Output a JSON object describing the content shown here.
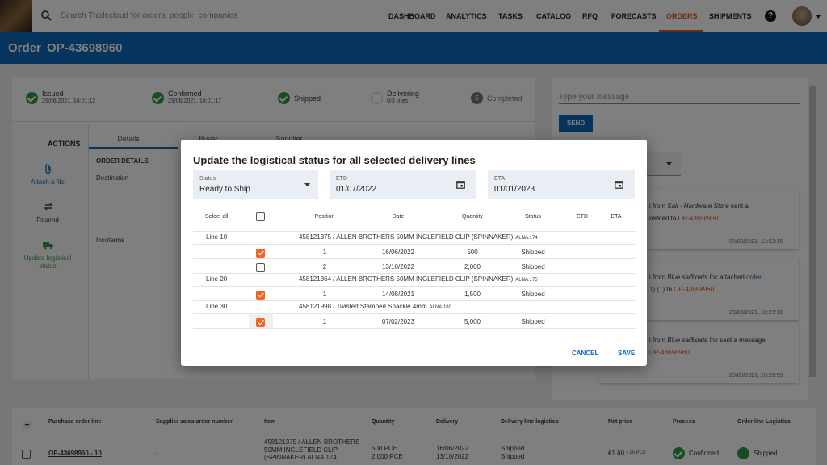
{
  "nav": {
    "search_placeholder": "Search Tradecloud for orders, people, companies",
    "items": [
      "DASHBOARD",
      "ANALYTICS",
      "TASKS",
      "CATALOG",
      "RFQ",
      "FORECASTS",
      "ORDERS",
      "SHIPMENTS"
    ],
    "active_index": 6,
    "help": "?"
  },
  "header": {
    "label": "Order",
    "order_number": "OP-43698960"
  },
  "stepper": [
    {
      "label": "Issued",
      "detail": "29/06/2021, 16:01:12"
    },
    {
      "label": "Confirmed",
      "detail": "29/06/2021, 16:01:17"
    },
    {
      "label": "Shipped"
    },
    {
      "label": "Delivering",
      "detail": "0/3 lines"
    },
    {
      "label": "Completed",
      "number": "5"
    }
  ],
  "tabs": [
    "Details",
    "Buyer",
    "Supplier"
  ],
  "actions": {
    "title": "ACTIONS",
    "items": [
      "Attach a file",
      "Resend",
      "Update logistical status"
    ]
  },
  "order_details": {
    "title": "ORDER DETAILS",
    "fields": [
      "Destination",
      "Incoterms"
    ]
  },
  "chat": {
    "placeholder": "Type your message",
    "send": "SEND",
    "messages": [
      {
        "lines": [
          [
            "i from ",
            "Sail - Hardware Store",
            " sent a"
          ],
          [
            "related to ",
            "OP-43698960"
          ]
        ],
        "time": "08/09/2021, 13:53:16"
      },
      {
        "lines": [
          [
            "i from ",
            "Blue sailboats Inc",
            " attached ",
            "order"
          ],
          [
            "1) (1)",
            " to ",
            "OP-43698960"
          ]
        ],
        "time": "23/08/2021, 10:27:10"
      },
      {
        "lines": [
          [
            "i from ",
            "Blue sailboats Inc",
            " sent a message"
          ],
          [
            "OP-43698960"
          ]
        ],
        "time": "23/08/2021, 10:26:58"
      }
    ]
  },
  "lines_table": {
    "headers": [
      "Purchase order line",
      "Supplier sales order number",
      "Item",
      "Quantity",
      "Delivery",
      "Delivery line logistics",
      "Net price",
      "Process",
      "Order line Logistics"
    ],
    "row": {
      "line": "OP-43698960 - 10",
      "supplier_so": "-",
      "item": "458121375 / ALLEN BROTHERS 50MM INGLEFIELD CLIP (SPINNAKER) ALNA.174",
      "quantity": [
        "500 PCE",
        "2,000 PCE"
      ],
      "delivery": [
        "16/06/2022",
        "13/10/2022"
      ],
      "logistics": [
        "Shipped",
        "Shipped"
      ],
      "price": "€1.60",
      "price_unit": "/ 25 PCE",
      "process": "Confirmed",
      "order_logistics": "Shipped"
    }
  },
  "modal": {
    "title": "Update the logistical status for all selected delivery lines",
    "fields": [
      {
        "label": "Status",
        "value": "Ready to Ship"
      },
      {
        "label": "ETD",
        "value": "01/07/2022"
      },
      {
        "label": "ETA",
        "value": "01/01/2023"
      }
    ],
    "headers": [
      "Select all",
      "Position",
      "Date",
      "Quantity",
      "Status",
      "ETD",
      "ETA"
    ],
    "groups": [
      {
        "line": "Line 10",
        "item": "458121375 / ALLEN BROTHERS 50MM INGLEFIELD CLIP (SPINNAKER)",
        "code": "ALNA.174",
        "rows": [
          {
            "checked": true,
            "position": "1",
            "date": "16/06/2022",
            "quantity": "500",
            "status": "Shipped"
          },
          {
            "checked": false,
            "position": "2",
            "date": "13/10/2022",
            "quantity": "2,000",
            "status": "Shipped"
          }
        ]
      },
      {
        "line": "Line 20",
        "item": "458121364 / ALLEN BROTHERS 50MM INGLEFIELD CLIP (SPINNAKER)",
        "code": "ALNA.175",
        "rows": [
          {
            "checked": true,
            "position": "1",
            "date": "14/08/2021",
            "quantity": "1,500",
            "status": "Shipped"
          }
        ]
      },
      {
        "line": "Line 30",
        "item": "458121998 / Twisted Stamped Shackle 4mm",
        "code": "ALNA.180",
        "rows": [
          {
            "checked": true,
            "position": "1",
            "date": "07/02/2023",
            "quantity": "5,000",
            "status": "Shipped"
          }
        ]
      }
    ],
    "cancel": "CANCEL",
    "save": "SAVE"
  }
}
